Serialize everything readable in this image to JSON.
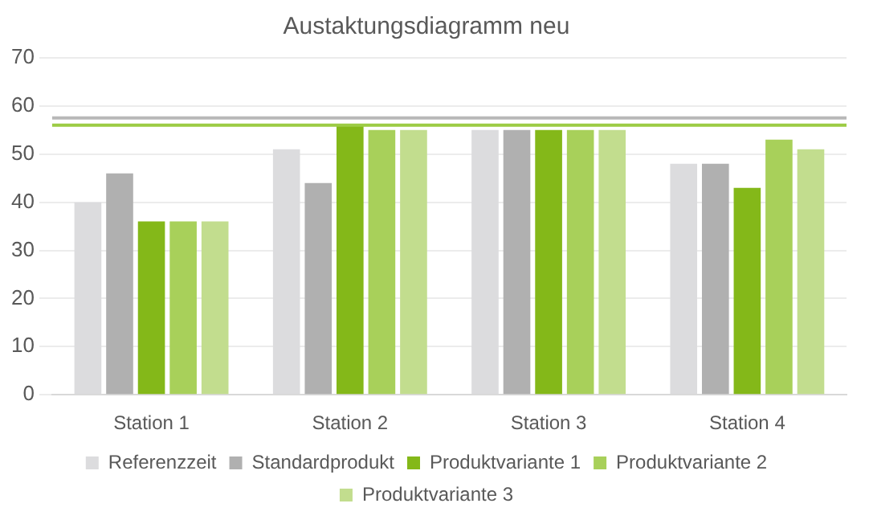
{
  "chart_data": {
    "type": "bar",
    "title": "Austaktungsdiagramm neu",
    "categories": [
      "Station 1",
      "Station 2",
      "Station 3",
      "Station 4"
    ],
    "series": [
      {
        "name": "Referenzzeit",
        "color": "#dcdcde",
        "values": [
          40,
          51,
          55,
          48
        ]
      },
      {
        "name": "Standardprodukt",
        "color": "#b0b0b0",
        "values": [
          46,
          44,
          55,
          48
        ]
      },
      {
        "name": "Produktvariante 1",
        "color": "#84b819",
        "values": [
          36,
          56,
          55,
          43
        ]
      },
      {
        "name": "Produktvariante 2",
        "color": "#a8d05a",
        "values": [
          36,
          55,
          55,
          53
        ]
      },
      {
        "name": "Produktvariante 3",
        "color": "#c2dd8e",
        "values": [
          36,
          55,
          55,
          51
        ]
      }
    ],
    "ylim": [
      0,
      70
    ],
    "yticks": [
      0,
      10,
      20,
      30,
      40,
      50,
      60,
      70
    ],
    "grid": "y",
    "legend": "bottom",
    "ref_lines": [
      {
        "axis": "y",
        "value": 57.5,
        "color": "#b8b8b8"
      },
      {
        "axis": "y",
        "value": 56,
        "color": "#9ccc44"
      }
    ]
  }
}
